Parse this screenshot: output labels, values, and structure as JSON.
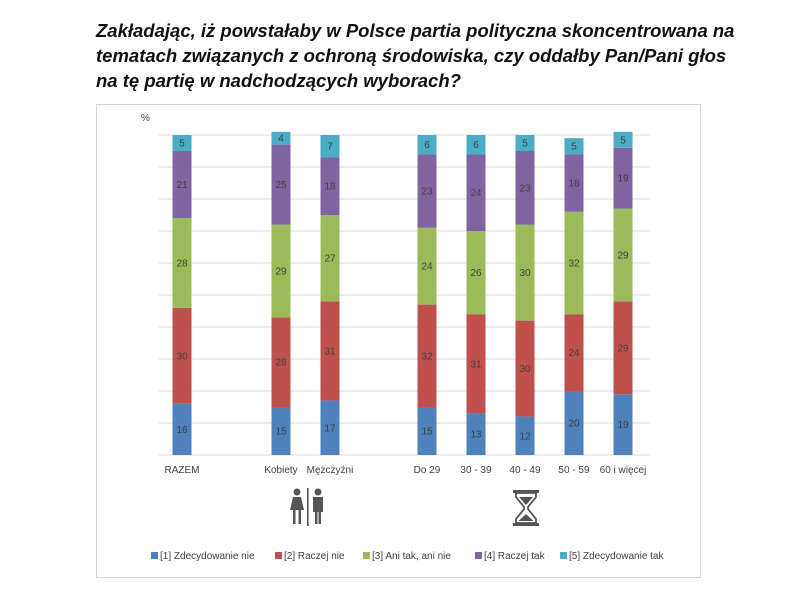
{
  "title": "Zakładając, iż powstałaby w Polsce partia polityczna skoncentrowana na\ntematach związanych z ochroną środowiska, czy oddałby Pan/Pani głos\nna tę partię w nadchodzących wyborach?",
  "chart_data": {
    "type": "bar",
    "stacked": true,
    "percent": true,
    "unit": "%",
    "ylim": [
      0,
      100
    ],
    "grid": true,
    "legend_position": "bottom",
    "categories": [
      "RAZEM",
      "Kobiety",
      "Mężczyźni",
      "Do 29",
      "30 - 39",
      "40 - 49",
      "50 - 59",
      "60 i więcej"
    ],
    "series": [
      {
        "name": "[1] Zdecydowanie nie",
        "color": "#4f81bd",
        "values": [
          16,
          15,
          17,
          15,
          13,
          12,
          20,
          19
        ]
      },
      {
        "name": "[2] Raczej nie",
        "color": "#c0504d",
        "values": [
          30,
          28,
          31,
          32,
          31,
          30,
          24,
          29
        ]
      },
      {
        "name": "[3] Ani tak, ani nie",
        "color": "#9bbb59",
        "values": [
          28,
          29,
          27,
          24,
          26,
          30,
          32,
          29
        ]
      },
      {
        "name": "[4] Raczej tak",
        "color": "#8064a2",
        "values": [
          21,
          25,
          18,
          23,
          24,
          23,
          18,
          19
        ]
      },
      {
        "name": "[5] Zdecydowanie tak",
        "color": "#4bacc6",
        "values": [
          5,
          4,
          7,
          6,
          6,
          5,
          5,
          5
        ]
      }
    ],
    "group_icons": [
      {
        "name": "female-male-icon",
        "groups": [
          "Kobiety",
          "Mężczyźni"
        ]
      },
      {
        "name": "hourglass-icon",
        "groups": [
          "Do 29",
          "30 - 39",
          "40 - 49",
          "50 - 59",
          "60 i więcej"
        ]
      }
    ]
  }
}
